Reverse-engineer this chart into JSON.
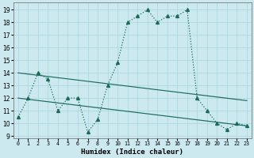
{
  "xlabel": "Humidex (Indice chaleur)",
  "bg_color": "#cce9f0",
  "line_color": "#1b6b5a",
  "grid_color": "#a8d4de",
  "xlim": [
    -0.5,
    23.5
  ],
  "ylim": [
    8.8,
    19.6
  ],
  "yticks": [
    9,
    10,
    11,
    12,
    13,
    14,
    15,
    16,
    17,
    18,
    19
  ],
  "xticks": [
    0,
    1,
    2,
    3,
    4,
    5,
    6,
    7,
    8,
    9,
    10,
    11,
    12,
    13,
    14,
    15,
    16,
    17,
    18,
    19,
    20,
    21,
    22,
    23
  ],
  "curve_x": [
    0,
    1,
    2,
    3,
    4,
    5,
    6,
    7,
    8,
    9,
    10,
    11,
    12,
    13,
    14,
    15,
    16,
    17,
    18,
    19,
    20,
    21,
    22,
    23
  ],
  "curve_y": [
    10.5,
    12.0,
    14.0,
    13.5,
    11.0,
    12.0,
    12.0,
    9.3,
    10.3,
    13.0,
    14.8,
    18.0,
    18.5,
    19.0,
    18.0,
    18.5,
    18.5,
    19.0,
    12.0,
    11.0,
    10.0,
    9.5,
    10.0,
    9.8
  ],
  "trend1_x": [
    0,
    23
  ],
  "trend1_y": [
    14.0,
    11.8
  ],
  "trend2_x": [
    0,
    23
  ],
  "trend2_y": [
    12.0,
    9.8
  ],
  "figsize": [
    3.2,
    2.0
  ],
  "dpi": 100
}
